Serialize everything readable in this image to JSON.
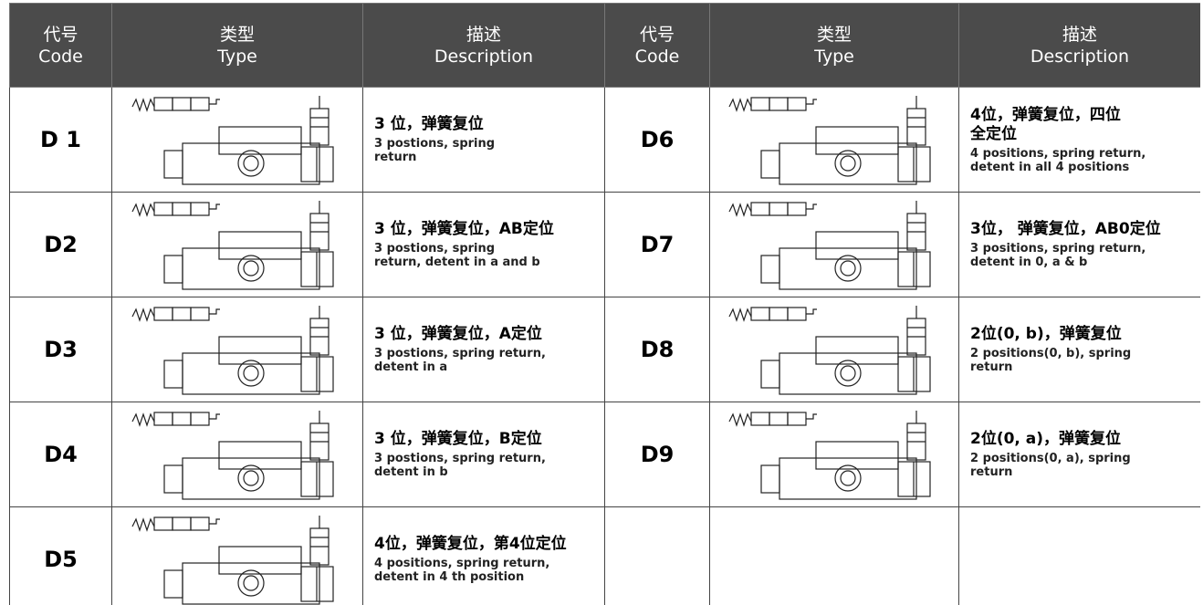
{
  "header": {
    "cells": [
      {
        "zh": "代号",
        "en": "Code"
      },
      {
        "zh": "类型",
        "en": "Type"
      },
      {
        "zh": "描述",
        "en": "Description"
      },
      {
        "zh": "代号",
        "en": "Code"
      },
      {
        "zh": "类型",
        "en": "Type"
      },
      {
        "zh": "描述",
        "en": "Description"
      }
    ]
  },
  "rows": [
    {
      "left": {
        "code": "D 1",
        "desc_zh": [
          "3 位，弹簧复位"
        ],
        "desc_en": [
          "3 postions, spring",
          "return"
        ]
      },
      "right": {
        "code": "D6",
        "desc_zh": [
          "4位，弹簧复位，四位",
          "全定位"
        ],
        "desc_en": [
          "4 positions, spring return,",
          "detent in all 4 positions"
        ]
      }
    },
    {
      "left": {
        "code": "D2",
        "desc_zh": [
          "3 位，弹簧复位，AB定位"
        ],
        "desc_en": [
          "3 postions, spring",
          "return, detent in a and b"
        ]
      },
      "right": {
        "code": "D7",
        "desc_zh": [
          "3位， 弹簧复位，AB0定位"
        ],
        "desc_en": [
          "3 positions, spring return,",
          "detent in 0, a & b"
        ]
      }
    },
    {
      "left": {
        "code": "D3",
        "desc_zh": [
          "3 位，弹簧复位，A定位"
        ],
        "desc_en": [
          "3 postions, spring return,",
          "detent in a"
        ]
      },
      "right": {
        "code": "D8",
        "desc_zh": [
          "2位(0, b)，弹簧复位"
        ],
        "desc_en": [
          "2 positions(0, b), spring",
          "return"
        ]
      }
    },
    {
      "left": {
        "code": "D4",
        "desc_zh": [
          "3 位，弹簧复位，B定位"
        ],
        "desc_en": [
          "3 postions, spring return,",
          "detent in b"
        ]
      },
      "right": {
        "code": "D9",
        "desc_zh": [
          "2位(0, a)，弹簧复位"
        ],
        "desc_en": [
          "2 positions(0, a), spring",
          "return"
        ]
      }
    },
    {
      "left": {
        "code": "D5",
        "desc_zh": [
          "4位，弹簧复位，第4位定位"
        ],
        "desc_en": [
          "4 positions, spring return,",
          "detent in 4 th position"
        ]
      }
    }
  ]
}
